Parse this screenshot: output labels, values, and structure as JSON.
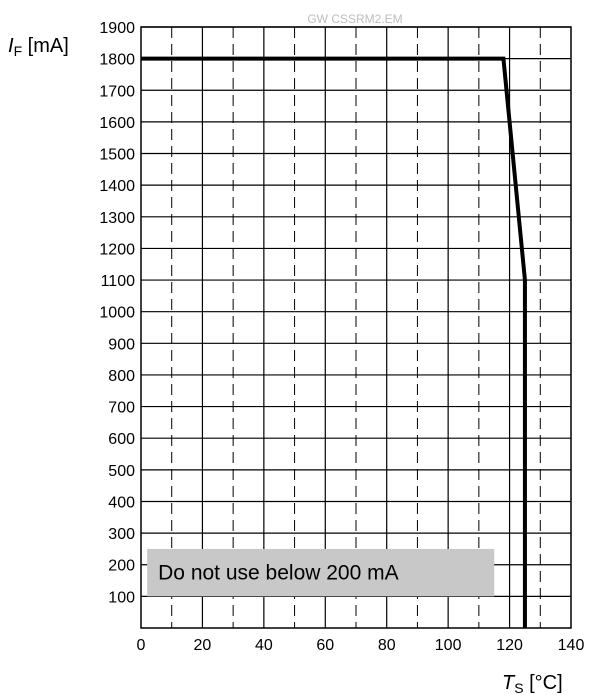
{
  "watermark": "GW CSSRM2.EM",
  "colors": {
    "curve": "#000000",
    "grid": "#000000",
    "note_box": "#c8c8c8",
    "watermark": "#bdbdbd"
  },
  "chart_data": {
    "type": "line",
    "title": "",
    "ylabel": {
      "symbol": "I",
      "subscript": "F",
      "unit": " [mA]"
    },
    "xlabel": {
      "symbol": "T",
      "subscript": "S",
      "unit": " [°C]"
    },
    "xlim": [
      0,
      140
    ],
    "ylim": [
      0,
      1900
    ],
    "xticks": [
      0,
      20,
      40,
      60,
      80,
      100,
      120,
      140
    ],
    "xtick_labels": [
      "0",
      "20",
      "40",
      "60",
      "80",
      "100",
      "120",
      "140"
    ],
    "x_minor_ticks": [
      10,
      30,
      50,
      70,
      90,
      110,
      130
    ],
    "yticks": [
      100,
      200,
      300,
      400,
      500,
      600,
      700,
      800,
      900,
      1000,
      1100,
      1200,
      1300,
      1400,
      1500,
      1600,
      1700,
      1800,
      1900
    ],
    "ytick_labels": [
      "100",
      "200",
      "300",
      "400",
      "500",
      "600",
      "700",
      "800",
      "900",
      "1000",
      "1100",
      "1200",
      "1300",
      "1400",
      "1500",
      "1600",
      "1700",
      "1800",
      "1900"
    ],
    "grid": true,
    "series": [
      {
        "x": [
          0,
          118,
          125,
          125
        ],
        "y": [
          1800,
          1800,
          1100,
          0
        ]
      }
    ],
    "annotations": [
      {
        "text": "Do not use below 200 mA",
        "y_range": [
          100,
          250
        ],
        "x_range": [
          2,
          115
        ]
      }
    ]
  }
}
